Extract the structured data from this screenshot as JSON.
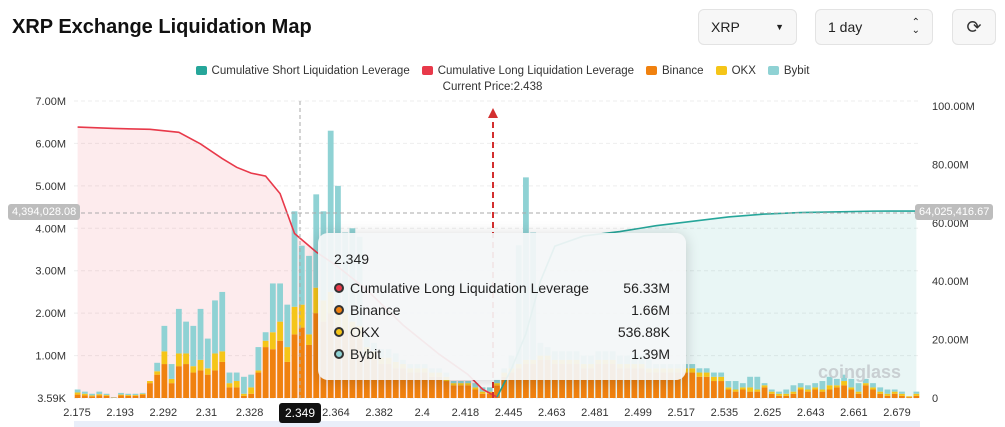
{
  "header": {
    "title": "XRP Exchange Liquidation Map",
    "symbol": "XRP",
    "period": "1 day",
    "refresh_icon": "refresh-icon"
  },
  "legend": [
    {
      "label": "Cumulative Short Liquidation Leverage",
      "color": "#26a69a"
    },
    {
      "label": "Cumulative Long Liquidation Leverage",
      "color": "#e8394a"
    },
    {
      "label": "Binance",
      "color": "#f0810f"
    },
    {
      "label": "OKX",
      "color": "#f5c518"
    },
    {
      "label": "Bybit",
      "color": "#8fd2d4"
    }
  ],
  "current_price_label": "Current Price:2.438",
  "crosshair": {
    "x_label": "2.349",
    "left_value": "4,394,028.08",
    "right_value": "64,025,416.67"
  },
  "tooltip": {
    "title": "2.349",
    "rows": [
      {
        "label": "Cumulative Long Liquidation Leverage",
        "value": "56.33M",
        "color": "#e8394a"
      },
      {
        "label": "Binance",
        "value": "1.66M",
        "color": "#f0810f"
      },
      {
        "label": "OKX",
        "value": "536.88K",
        "color": "#f5c518"
      },
      {
        "label": "Bybit",
        "value": "1.39M",
        "color": "#8fd2d4"
      }
    ]
  },
  "watermark": "coinglass",
  "chart_data": {
    "type": "bar",
    "x_tick_labels": [
      "2.175",
      "2.193",
      "2.292",
      "2.31",
      "2.328",
      "2.349",
      "2.364",
      "2.382",
      "2.4",
      "2.418",
      "2.445",
      "2.463",
      "2.481",
      "2.499",
      "2.517",
      "2.535",
      "2.625",
      "2.643",
      "2.661",
      "2.679"
    ],
    "y_left": {
      "ticks": [
        "3.59K",
        "1.00M",
        "2.00M",
        "3.00M",
        "4.00M",
        "5.00M",
        "6.00M",
        "7.00M"
      ],
      "range": [
        0,
        7
      ]
    },
    "y_right": {
      "ticks": [
        "0",
        "20.00M",
        "40.00M",
        "60.00M",
        "80.00M",
        "100.00M"
      ],
      "range": [
        0,
        100
      ]
    },
    "current_price": 2.438,
    "series": [
      {
        "name": "Binance",
        "color": "#f0810f",
        "values": [
          0.08,
          0.06,
          0.04,
          0.06,
          0.05,
          0.01,
          0.06,
          0.05,
          0.05,
          0.08,
          0.35,
          0.55,
          0.8,
          0.35,
          0.75,
          0.8,
          0.6,
          0.65,
          0.55,
          0.65,
          0.85,
          0.25,
          0.25,
          0.05,
          0.1,
          0.6,
          1.2,
          1.15,
          1.35,
          0.85,
          1.5,
          1.66,
          1.25,
          2.0,
          1.8,
          2.0,
          1.7,
          1.6,
          1.5,
          1.4,
          1.0,
          0.9,
          0.8,
          0.8,
          0.7,
          0.7,
          0.6,
          0.6,
          0.6,
          0.5,
          0.5,
          0.4,
          0.3,
          0.3,
          0.3,
          0.2,
          0.1,
          0.1,
          0.3,
          0.5,
          0.6,
          0.7,
          0.8,
          0.8,
          0.9,
          0.9,
          0.8,
          0.8,
          0.8,
          0.8,
          0.7,
          0.7,
          0.8,
          0.8,
          0.8,
          0.7,
          0.7,
          0.7,
          0.7,
          0.6,
          0.6,
          0.6,
          0.6,
          0.6,
          0.6,
          0.6,
          0.5,
          0.5,
          0.4,
          0.4,
          0.2,
          0.15,
          0.2,
          0.15,
          0.15,
          0.25,
          0.1,
          0.05,
          0.05,
          0.1,
          0.2,
          0.15,
          0.2,
          0.15,
          0.2,
          0.25,
          0.3,
          0.2,
          0.1,
          0.3,
          0.2,
          0.1,
          0.05,
          0.1,
          0.05,
          0.02,
          0.05
        ]
      },
      {
        "name": "OKX",
        "color": "#f5c518",
        "values": [
          0.05,
          0.04,
          0.02,
          0.03,
          0.02,
          0,
          0.02,
          0.02,
          0.02,
          0.02,
          0.05,
          0.08,
          0.3,
          0.1,
          0.3,
          0.25,
          0.15,
          0.25,
          0.15,
          0.4,
          0.25,
          0.1,
          0.15,
          0.05,
          0.15,
          0.05,
          0.15,
          0.4,
          0.45,
          0.35,
          0.65,
          0.54,
          0.25,
          0.6,
          0.5,
          0.5,
          0.4,
          0.4,
          0.3,
          0.3,
          0.2,
          0.2,
          0.15,
          0.15,
          0.15,
          0.1,
          0.1,
          0.1,
          0.1,
          0.1,
          0.1,
          0.1,
          0.05,
          0.05,
          0.05,
          0.05,
          0.05,
          0.05,
          0.05,
          0.1,
          0.1,
          0.1,
          0.1,
          0.1,
          0.1,
          0.1,
          0.1,
          0.1,
          0.1,
          0.1,
          0.1,
          0.1,
          0.1,
          0.1,
          0.1,
          0.1,
          0.1,
          0.1,
          0.1,
          0.1,
          0.1,
          0.1,
          0.1,
          0.1,
          0.1,
          0.1,
          0.1,
          0.1,
          0.1,
          0.1,
          0.05,
          0.05,
          0.05,
          0.1,
          0.05,
          0.05,
          0.05,
          0.05,
          0.05,
          0.05,
          0.05,
          0.05,
          0.05,
          0.05,
          0.1,
          0.05,
          0.1,
          0.05,
          0.05,
          0.05,
          0.05,
          0.05,
          0.05,
          0.05,
          0.05,
          0.02,
          0.05
        ]
      },
      {
        "name": "Bybit",
        "color": "#8fd2d4",
        "values": [
          0.07,
          0.05,
          0.04,
          0.06,
          0.03,
          0.01,
          0.04,
          0.03,
          0.03,
          0.02,
          0.0,
          0.2,
          0.6,
          0.35,
          1.05,
          0.75,
          0.95,
          1.2,
          0.7,
          1.25,
          1.4,
          0.25,
          0.2,
          0.4,
          0.3,
          0.55,
          0.2,
          1.15,
          0.9,
          1.0,
          2.25,
          1.39,
          1.85,
          2.2,
          2.1,
          3.8,
          2.9,
          1.9,
          2.2,
          2.1,
          0.3,
          0.2,
          0.2,
          0.2,
          0.2,
          0.1,
          0.1,
          0.1,
          0.1,
          0.1,
          0.1,
          0.1,
          0.05,
          0.05,
          0.05,
          0.1,
          0.1,
          0.1,
          0.1,
          0.1,
          0.3,
          2.8,
          4.3,
          3.0,
          0.3,
          0.2,
          0.2,
          0.2,
          0.2,
          0.2,
          0.2,
          0.2,
          0.2,
          0.2,
          0.2,
          0.2,
          0.2,
          0.2,
          0.2,
          0.2,
          0.1,
          0.1,
          0.1,
          0.1,
          0.1,
          0.1,
          0.1,
          0.1,
          0.1,
          0.1,
          0.15,
          0.2,
          0.1,
          0.25,
          0.3,
          0.05,
          0.05,
          0.05,
          0.1,
          0.15,
          0.1,
          0.1,
          0.1,
          0.2,
          0.2,
          0.15,
          0.15,
          0.2,
          0.2,
          0.1,
          0.1,
          0.1,
          0.1,
          0.05,
          0.05,
          0.0,
          0.05
        ]
      }
    ],
    "long_cumulative": {
      "name": "Cumulative Long Liquidation Leverage",
      "axis": "right",
      "points": [
        [
          0,
          92.8
        ],
        [
          5,
          92.3
        ],
        [
          10,
          92
        ],
        [
          14,
          91
        ],
        [
          17,
          87
        ],
        [
          20,
          82
        ],
        [
          22,
          79
        ],
        [
          24,
          77
        ],
        [
          26,
          76
        ],
        [
          28,
          70
        ],
        [
          30,
          56.33
        ],
        [
          33,
          50
        ],
        [
          36,
          45
        ],
        [
          40,
          37
        ],
        [
          45,
          25
        ],
        [
          50,
          15
        ],
        [
          54,
          8
        ],
        [
          56,
          3
        ],
        [
          58,
          0.3
        ]
      ]
    },
    "short_cumulative": {
      "name": "Cumulative Short Liquidation Leverage",
      "axis": "right",
      "points": [
        [
          58,
          0.3
        ],
        [
          60,
          10
        ],
        [
          62,
          22
        ],
        [
          64,
          40
        ],
        [
          66,
          52
        ],
        [
          70,
          55.5
        ],
        [
          75,
          57
        ],
        [
          80,
          59
        ],
        [
          85,
          60.5
        ],
        [
          90,
          62
        ],
        [
          95,
          63
        ],
        [
          100,
          63.5
        ],
        [
          110,
          64
        ],
        [
          116,
          64.03
        ]
      ]
    }
  }
}
